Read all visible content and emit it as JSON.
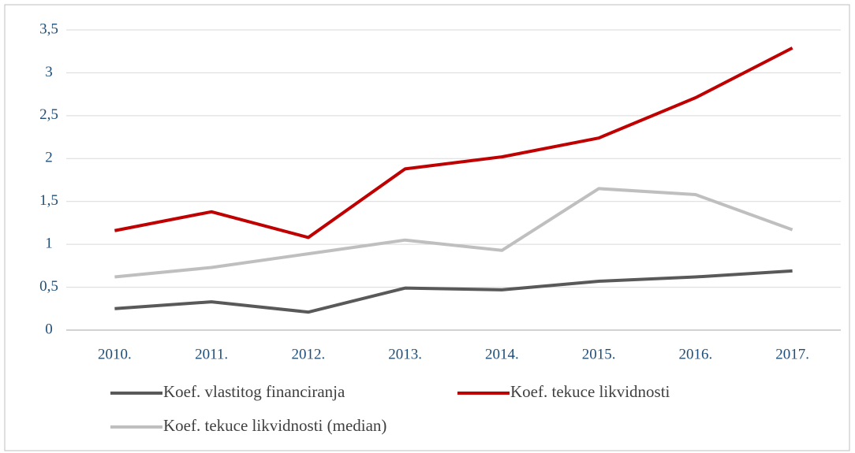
{
  "chart_data": {
    "type": "line",
    "categories": [
      "2010.",
      "2011.",
      "2012.",
      "2013.",
      "2014.",
      "2015.",
      "2016.",
      "2017."
    ],
    "series": [
      {
        "name": "Koef. vlastitog financiranja",
        "color": "#595959",
        "values": [
          0.25,
          0.33,
          0.21,
          0.49,
          0.47,
          0.57,
          0.62,
          0.69
        ]
      },
      {
        "name": "Koef. tekuce likvidnosti",
        "color": "#c00000",
        "values": [
          1.16,
          1.38,
          1.08,
          1.88,
          2.02,
          2.24,
          2.71,
          3.29
        ]
      },
      {
        "name": "Koef. tekuce likvidnosti (median)",
        "color": "#bfbfbf",
        "values": [
          0.62,
          0.73,
          0.89,
          1.05,
          0.93,
          1.65,
          1.58,
          1.17
        ]
      }
    ],
    "ylim": [
      0,
      3.5
    ],
    "yticks": [
      0,
      {
        "value": 0.5,
        "label": "0,5"
      },
      1,
      {
        "value": 1.5,
        "label": "1,5"
      },
      2,
      {
        "value": 2.5,
        "label": "2,5"
      },
      3,
      {
        "value": 3.5,
        "label": "3,5"
      }
    ],
    "grid": true,
    "legend": "bottom"
  }
}
